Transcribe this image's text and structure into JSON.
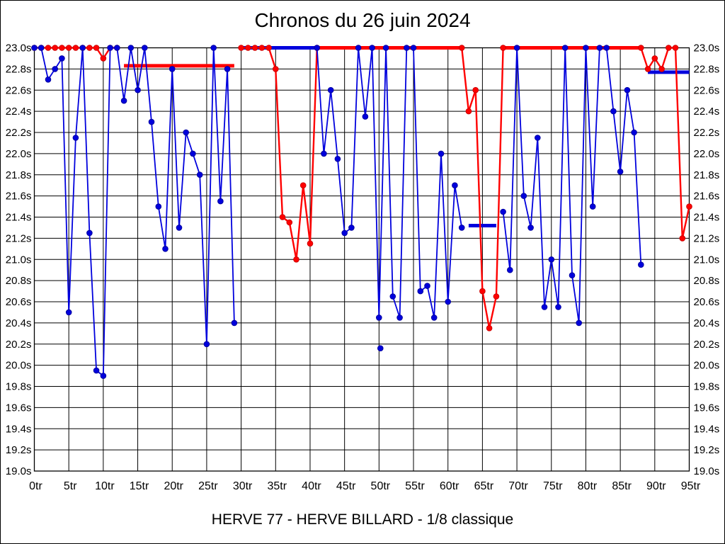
{
  "chart_data": {
    "type": "line",
    "title": "Chronos du 26 juin 2024",
    "footer": "HERVE 77 - HERVE BILLARD - 1/8 classique",
    "x_axis": {
      "unit": "tr",
      "min": 0,
      "max": 95,
      "tick_step": 5,
      "tick_labels": [
        "0tr",
        "5tr",
        "10tr",
        "15tr",
        "20tr",
        "25tr",
        "30tr",
        "35tr",
        "40tr",
        "45tr",
        "50tr",
        "55tr",
        "60tr",
        "65tr",
        "70tr",
        "75tr",
        "80tr",
        "85tr",
        "90tr",
        "95tr"
      ]
    },
    "y_axis": {
      "unit": "s",
      "min": 19.0,
      "max": 23.0,
      "tick_step": 0.2,
      "labels_on_both_sides": true,
      "tick_labels": [
        "23.0s",
        "22.8s",
        "22.6s",
        "22.4s",
        "22.2s",
        "22.0s",
        "21.8s",
        "21.6s",
        "21.4s",
        "21.2s",
        "21.0s",
        "20.8s",
        "20.6s",
        "20.4s",
        "20.2s",
        "20.0s",
        "19.8s",
        "19.6s",
        "19.4s",
        "19.2s",
        "19.0s"
      ]
    },
    "grid": true,
    "clamp_value": 23.0,
    "colors": {
      "blue_series": "#0000dd",
      "blue_dot_edge": "#0000a0",
      "red_series": "#ff0000",
      "red_dot_edge": "#cc0000",
      "grid": "#000000",
      "background": "#ffffff",
      "text": "#000000"
    },
    "series": [
      {
        "name": "blue",
        "color_key": "blue_series",
        "points": [
          [
            0,
            23.0
          ],
          [
            1,
            23.0
          ],
          [
            2,
            22.7
          ],
          [
            3,
            22.8
          ],
          [
            4,
            22.9
          ],
          [
            5,
            20.5
          ],
          [
            6,
            22.15
          ],
          [
            7,
            23.0
          ],
          [
            8,
            21.25
          ],
          [
            9,
            19.95
          ],
          [
            10,
            19.9
          ],
          [
            11,
            23.0
          ],
          [
            12,
            23.0
          ],
          [
            13,
            22.5
          ],
          [
            14,
            23.0
          ],
          [
            15,
            22.6
          ],
          [
            16,
            23.0
          ],
          [
            17,
            22.3
          ],
          [
            18,
            21.5
          ],
          [
            19,
            21.1
          ],
          [
            20,
            22.8
          ],
          [
            21,
            21.3
          ],
          [
            22,
            22.2
          ],
          [
            23,
            22.0
          ],
          [
            24,
            21.8
          ],
          [
            25,
            20.2
          ],
          [
            26,
            23.0
          ],
          [
            27,
            21.55
          ],
          [
            28,
            22.8
          ],
          [
            29,
            20.4
          ],
          [
            41,
            23.0
          ],
          [
            42,
            22.0
          ],
          [
            43,
            22.6
          ],
          [
            44,
            21.95
          ],
          [
            45,
            21.25
          ],
          [
            46,
            21.3
          ],
          [
            47,
            23.0
          ],
          [
            48,
            22.35
          ],
          [
            49,
            23.0
          ],
          [
            50,
            20.45
          ],
          [
            51,
            23.0
          ],
          [
            52,
            20.65
          ],
          [
            53,
            20.45
          ],
          [
            54,
            23.0
          ],
          [
            55,
            23.0
          ],
          [
            56,
            20.7
          ],
          [
            57,
            20.75
          ],
          [
            58,
            20.45
          ],
          [
            59,
            22.0
          ],
          [
            60,
            20.6
          ],
          [
            61,
            21.7
          ],
          [
            62,
            21.3
          ],
          [
            68,
            21.45
          ],
          [
            69,
            20.9
          ],
          [
            70,
            23.0
          ],
          [
            71,
            21.6
          ],
          [
            72,
            21.3
          ],
          [
            73,
            22.15
          ],
          [
            74,
            20.55
          ],
          [
            75,
            21.0
          ],
          [
            76,
            20.55
          ],
          [
            77,
            23.0
          ],
          [
            78,
            20.85
          ],
          [
            79,
            20.4
          ],
          [
            80,
            23.0
          ],
          [
            81,
            21.5
          ],
          [
            82,
            23.0
          ],
          [
            83,
            23.0
          ],
          [
            84,
            22.4
          ],
          [
            85,
            21.83
          ],
          [
            86,
            22.6
          ],
          [
            87,
            22.2
          ],
          [
            88,
            20.95
          ]
        ]
      },
      {
        "name": "red",
        "color_key": "red_series",
        "points": [
          [
            0,
            23.0
          ],
          [
            1,
            23.0
          ],
          [
            2,
            23.0
          ],
          [
            3,
            23.0
          ],
          [
            4,
            23.0
          ],
          [
            5,
            23.0
          ],
          [
            6,
            23.0
          ],
          [
            7,
            23.0
          ],
          [
            8,
            23.0
          ],
          [
            9,
            23.0
          ],
          [
            10,
            22.9
          ],
          [
            11,
            23.0
          ],
          [
            12,
            23.0
          ],
          [
            30,
            23.0
          ],
          [
            31,
            23.0
          ],
          [
            32,
            23.0
          ],
          [
            33,
            23.0
          ],
          [
            34,
            23.0
          ],
          [
            35,
            22.8
          ],
          [
            36,
            21.4
          ],
          [
            37,
            21.35
          ],
          [
            38,
            21.0
          ],
          [
            39,
            21.7
          ],
          [
            40,
            21.15
          ],
          [
            41,
            23.0
          ],
          [
            62,
            23.0
          ],
          [
            63,
            22.4
          ],
          [
            64,
            22.6
          ],
          [
            65,
            20.7
          ],
          [
            66,
            20.35
          ],
          [
            67,
            20.65
          ],
          [
            68,
            23.0
          ],
          [
            88,
            23.0
          ],
          [
            89,
            22.8
          ],
          [
            90,
            22.9
          ],
          [
            91,
            22.8
          ],
          [
            92,
            23.0
          ],
          [
            93,
            23.0
          ],
          [
            94,
            21.2
          ],
          [
            95,
            21.5
          ]
        ]
      }
    ],
    "marker_lines": [
      {
        "series": "red",
        "value": 22.83,
        "tr_start": 13,
        "tr_end": 29
      },
      {
        "series": "blue",
        "value": 23.0,
        "tr_start": 30,
        "tr_end": 41
      },
      {
        "series": "red",
        "value": 23.0,
        "tr_start": 41,
        "tr_end": 62
      },
      {
        "series": "blue",
        "value": 21.32,
        "tr_start": 63,
        "tr_end": 67
      },
      {
        "series": "red",
        "value": 23.0,
        "tr_start": 68,
        "tr_end": 88
      },
      {
        "series": "blue",
        "value": 22.77,
        "tr_start": 89,
        "tr_end": 95
      }
    ],
    "extra_points": [
      {
        "series": "blue",
        "tr": 50.2,
        "value": 20.16
      }
    ]
  }
}
